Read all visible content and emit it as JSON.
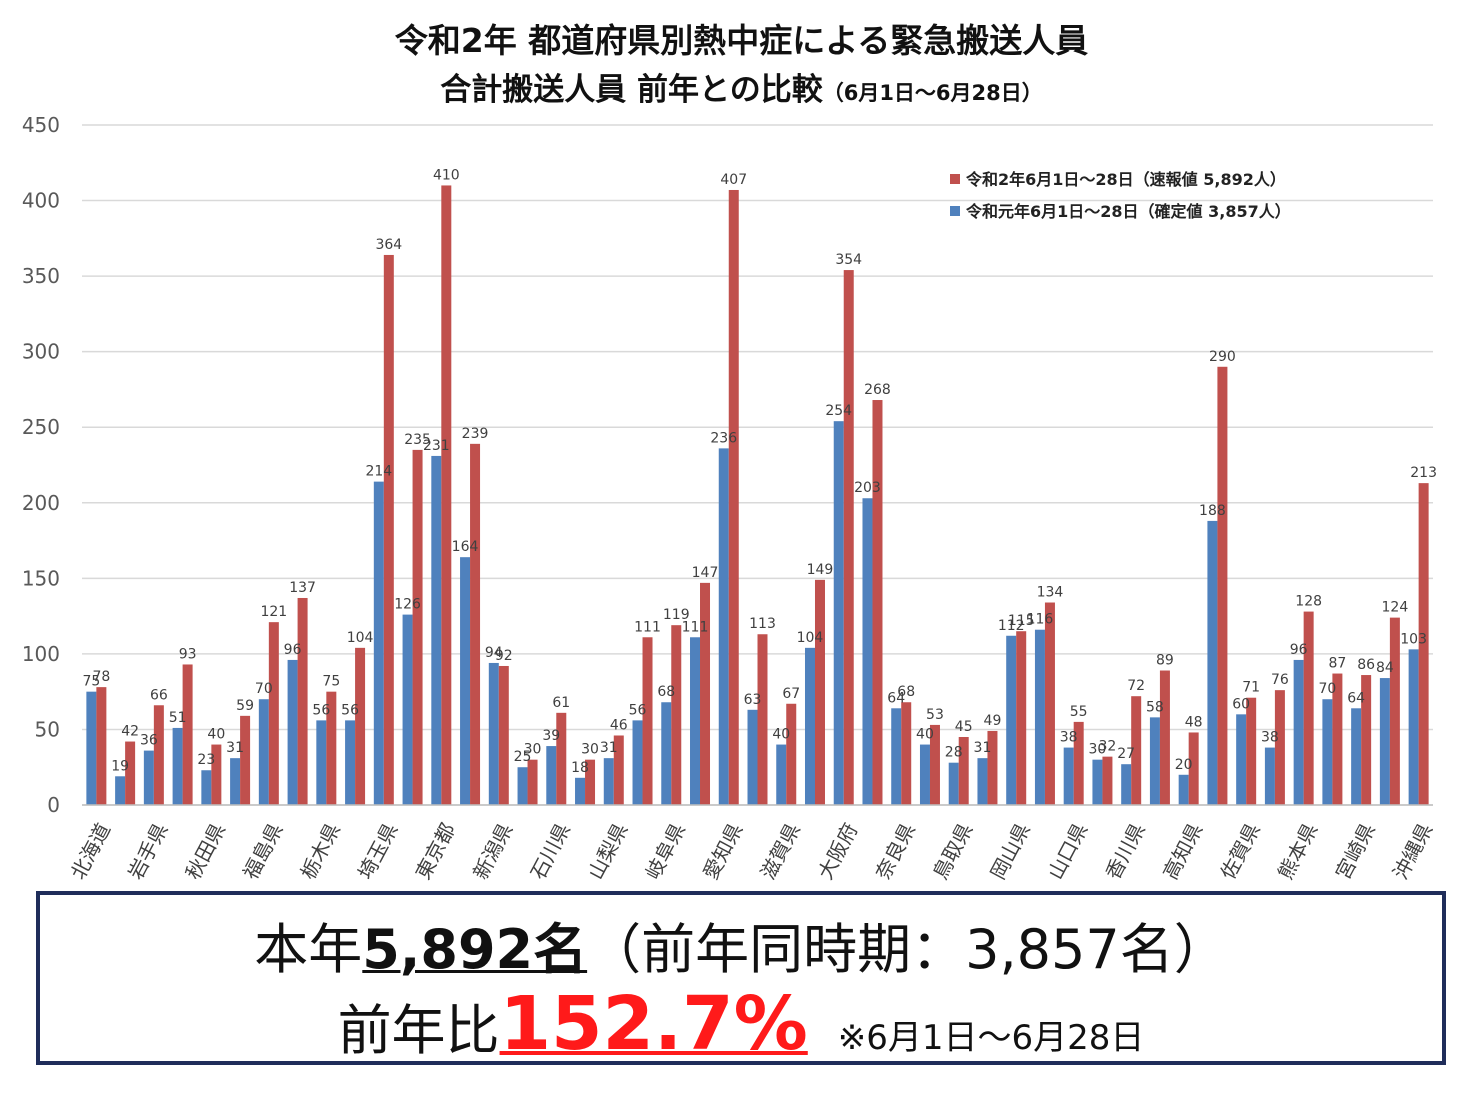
{
  "header": {
    "title_line1": "令和2年 都道府県別熱中症による緊急搬送人員",
    "title_line2": "合計搬送人員 前年との比較",
    "title_line2_sub": "（6月1日～6月28日）"
  },
  "colors": {
    "current": "#c0504d",
    "previous": "#4f81bd",
    "grid": "#d9d9d9",
    "box_border": "#1f2d5a",
    "highlight": "#ff1a1a"
  },
  "chart_data": {
    "type": "bar",
    "ylim": [
      0,
      450
    ],
    "yticks": [
      0,
      50,
      100,
      150,
      200,
      250,
      300,
      350,
      400,
      450
    ],
    "grid": true,
    "legend_position": "top-right",
    "categories": [
      "北海道",
      "岩手県",
      "秋田県",
      "福島県",
      "栃木県",
      "埼玉県",
      "東京都",
      "新潟県",
      "石川県",
      "山梨県",
      "岐阜県",
      "愛知県",
      "滋賀県",
      "大阪府",
      "奈良県",
      "鳥取県",
      "岡山県",
      "山口県",
      "香川県",
      "高知県",
      "佐賀県",
      "熊本県",
      "宮崎県",
      "沖縄県"
    ],
    "pairs": [
      {
        "previous": 75,
        "current": 78
      },
      {
        "previous": 19,
        "current": 42
      },
      {
        "previous": 36,
        "current": 66
      },
      {
        "previous": 51,
        "current": 93
      },
      {
        "previous": 23,
        "current": 40
      },
      {
        "previous": 31,
        "current": 59
      },
      {
        "previous": 70,
        "current": 121
      },
      {
        "previous": 96,
        "current": 137
      },
      {
        "previous": 56,
        "current": 75
      },
      {
        "previous": 56,
        "current": 104
      },
      {
        "previous": 214,
        "current": 364
      },
      {
        "previous": 126,
        "current": 235
      },
      {
        "previous": 231,
        "current": 410
      },
      {
        "previous": 164,
        "current": 239
      },
      {
        "previous": 94,
        "current": 92
      },
      {
        "previous": 25,
        "current": 30
      },
      {
        "previous": 39,
        "current": 61
      },
      {
        "previous": 18,
        "current": 30
      },
      {
        "previous": 31,
        "current": 46
      },
      {
        "previous": 56,
        "current": 111
      },
      {
        "previous": 68,
        "current": 119
      },
      {
        "previous": 111,
        "current": 147
      },
      {
        "previous": 236,
        "current": 407
      },
      {
        "previous": 63,
        "current": 113
      },
      {
        "previous": 40,
        "current": 67
      },
      {
        "previous": 104,
        "current": 149
      },
      {
        "previous": 254,
        "current": 354
      },
      {
        "previous": 203,
        "current": 268
      },
      {
        "previous": 64,
        "current": 68
      },
      {
        "previous": 40,
        "current": 53
      },
      {
        "previous": 28,
        "current": 45
      },
      {
        "previous": 31,
        "current": 49
      },
      {
        "previous": 112,
        "current": 115
      },
      {
        "previous": 116,
        "current": 134
      },
      {
        "previous": 38,
        "current": 55
      },
      {
        "previous": 30,
        "current": 32
      },
      {
        "previous": 27,
        "current": 72
      },
      {
        "previous": 58,
        "current": 89
      },
      {
        "previous": 20,
        "current": 48
      },
      {
        "previous": 188,
        "current": 290
      },
      {
        "previous": 60,
        "current": 71
      },
      {
        "previous": 38,
        "current": 76
      },
      {
        "previous": 96,
        "current": 128
      },
      {
        "previous": 70,
        "current": 87
      },
      {
        "previous": 64,
        "current": 86
      },
      {
        "previous": 84,
        "current": 124
      },
      {
        "previous": 103,
        "current": 213
      }
    ],
    "label_every_other_category": true,
    "legend": [
      {
        "key": "current",
        "label": "令和2年6月1日～28日（速報値 5,892人）"
      },
      {
        "key": "previous",
        "label": "令和元年6月1日～28日（確定値 3,857人）"
      }
    ]
  },
  "summary": {
    "line1_prefix": "本年",
    "line1_value": "5,892名",
    "line1_suffix": "（前年同時期：3,857名）",
    "line2_prefix": "前年比",
    "line2_value": "152.7%",
    "line2_note": "※6月1日～6月28日"
  }
}
